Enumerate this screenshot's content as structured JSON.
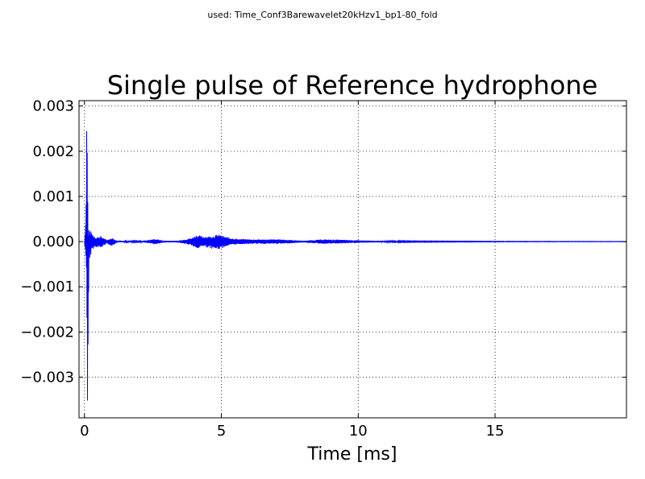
{
  "header": {
    "used_label": "used: Time_Conf3Barewavelet20kHzv1_bp1-80_fold"
  },
  "chart_data": {
    "type": "line",
    "title": "Single pulse of Reference hydrophone",
    "xlabel": "Time [ms]",
    "ylabel": "",
    "xlim": [
      -0.2,
      19.8
    ],
    "ylim": [
      -0.0039,
      0.00312
    ],
    "xticks": [
      0,
      5,
      10,
      15
    ],
    "xtick_labels": [
      "0",
      "5",
      "10",
      "15"
    ],
    "yticks": [
      0.003,
      0.002,
      0.001,
      0.0,
      -0.001,
      -0.002,
      -0.003
    ],
    "ytick_labels": [
      "0.003",
      "0.002",
      "0.001",
      "0.000",
      "−0.001",
      "−0.002",
      "−0.003"
    ],
    "grid": true,
    "legend": "none",
    "series": [
      {
        "color": "#0000ff",
        "envelope": [
          {
            "t": 0.0,
            "min": -2e-05,
            "max": 2e-05
          },
          {
            "t": 0.05,
            "min": -0.0004,
            "max": 0.0006
          },
          {
            "t": 0.08,
            "min": -0.0007,
            "max": 0.003
          },
          {
            "t": 0.1,
            "min": -0.0039,
            "max": 0.0029
          },
          {
            "t": 0.13,
            "min": -0.0039,
            "max": 0.0001
          },
          {
            "t": 0.16,
            "min": -0.0006,
            "max": 0.0003
          },
          {
            "t": 0.25,
            "min": -0.0002,
            "max": 0.0002
          },
          {
            "t": 0.4,
            "min": -0.00012,
            "max": 0.0001
          },
          {
            "t": 0.6,
            "min": -0.00015,
            "max": 0.00012
          },
          {
            "t": 0.8,
            "min": -4e-05,
            "max": 4e-05
          },
          {
            "t": 1.0,
            "min": -0.0001,
            "max": 8e-05
          },
          {
            "t": 1.2,
            "min": -2e-05,
            "max": 2e-05
          },
          {
            "t": 2.0,
            "min": -1e-05,
            "max": 1e-05
          },
          {
            "t": 2.6,
            "min": -6e-05,
            "max": 6e-05
          },
          {
            "t": 2.9,
            "min": -2e-05,
            "max": 2e-05
          },
          {
            "t": 3.4,
            "min": -2e-05,
            "max": 2e-05
          },
          {
            "t": 3.9,
            "min": -8e-05,
            "max": 8e-05
          },
          {
            "t": 4.1,
            "min": -0.00018,
            "max": 0.00015
          },
          {
            "t": 4.3,
            "min": -0.0001,
            "max": 0.00012
          },
          {
            "t": 4.6,
            "min": -0.00015,
            "max": 0.00012
          },
          {
            "t": 4.9,
            "min": -0.00018,
            "max": 0.00016
          },
          {
            "t": 5.2,
            "min": -0.0001,
            "max": 0.0001
          },
          {
            "t": 5.6,
            "min": -6e-05,
            "max": 6e-05
          },
          {
            "t": 6.2,
            "min": -5e-05,
            "max": 5e-05
          },
          {
            "t": 7.2,
            "min": -5e-05,
            "max": 5e-05
          },
          {
            "t": 8.0,
            "min": -2e-05,
            "max": 2e-05
          },
          {
            "t": 8.7,
            "min": -5e-05,
            "max": 5e-05
          },
          {
            "t": 9.5,
            "min": -4e-05,
            "max": 4e-05
          },
          {
            "t": 10.5,
            "min": -2e-05,
            "max": 2e-05
          },
          {
            "t": 12.0,
            "min": -1e-05,
            "max": 1e-05
          },
          {
            "t": 15.0,
            "min": -5e-06,
            "max": 5e-06
          },
          {
            "t": 19.8,
            "min": -3e-06,
            "max": 3e-06
          }
        ]
      }
    ]
  }
}
